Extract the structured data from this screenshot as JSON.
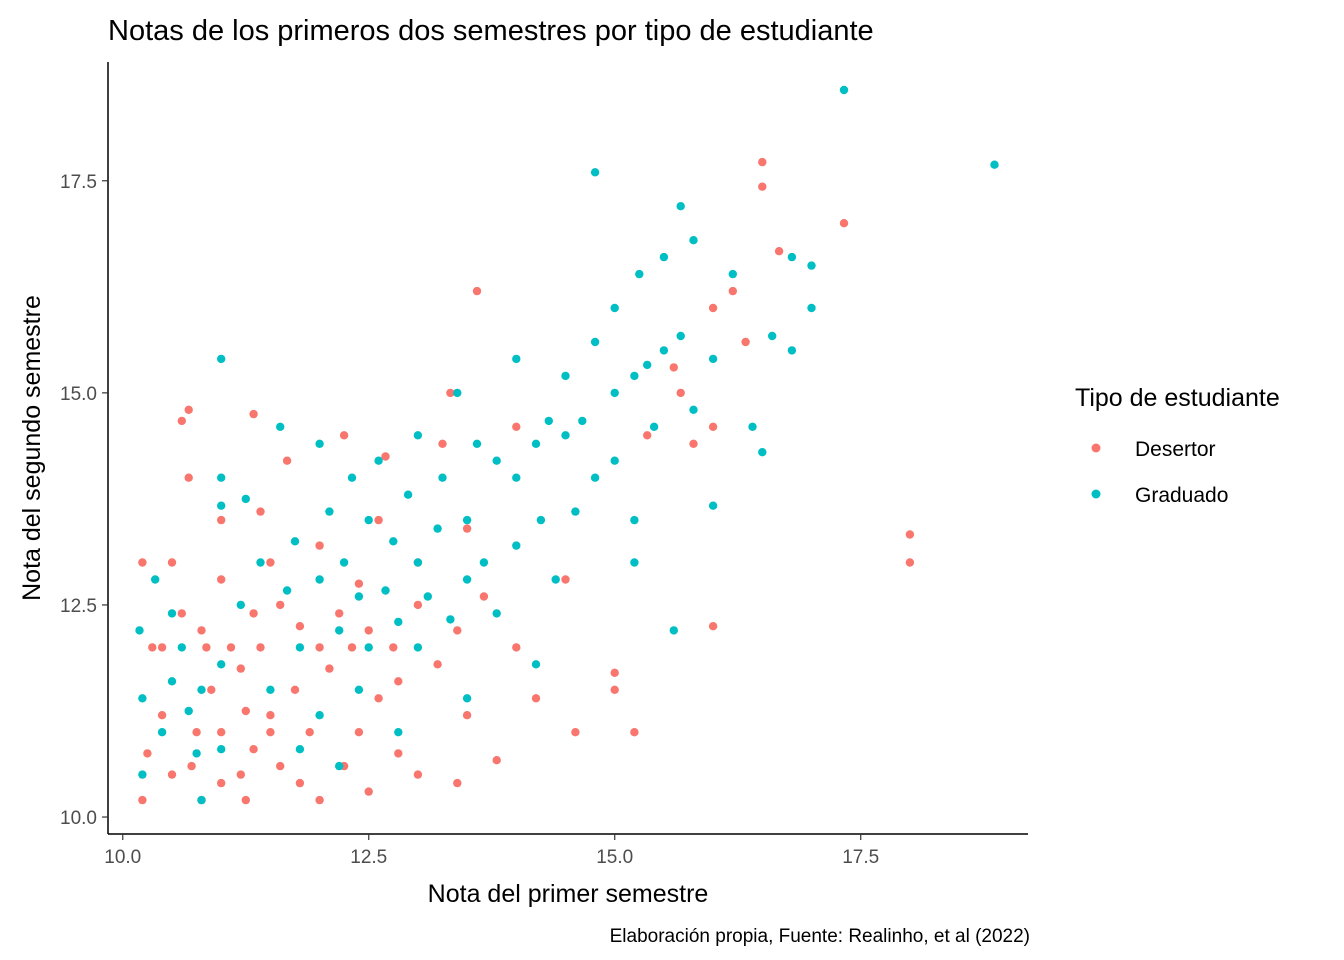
{
  "chart_data": {
    "type": "scatter",
    "title": "Notas de los primeros dos semestres por tipo de estudiante",
    "xlabel": "Nota del primer semestre",
    "ylabel": "Nota del segundo semestre",
    "caption": "Elaboración propia, Fuente: Realinho, et al (2022)",
    "legend_title": "Tipo de estudiante",
    "legend_position": "right",
    "grid": false,
    "xlim": [
      9.85,
      19.2
    ],
    "ylim": [
      9.8,
      18.9
    ],
    "x_ticks": [
      10.0,
      12.5,
      15.0,
      17.5
    ],
    "x_tick_labels": [
      "10.0",
      "12.5",
      "15.0",
      "17.5"
    ],
    "y_ticks": [
      10.0,
      12.5,
      15.0,
      17.5
    ],
    "y_tick_labels": [
      "10.0",
      "12.5",
      "15.0",
      "17.5"
    ],
    "series": [
      {
        "name": "Desertor",
        "color": "#f8766d",
        "points": [
          [
            10.2,
            10.2
          ],
          [
            10.25,
            10.75
          ],
          [
            10.3,
            12.0
          ],
          [
            10.2,
            13.0
          ],
          [
            10.4,
            12.0
          ],
          [
            10.4,
            11.2
          ],
          [
            10.5,
            10.5
          ],
          [
            10.5,
            13.0
          ],
          [
            10.6,
            14.67
          ],
          [
            10.67,
            14.8
          ],
          [
            10.67,
            14.0
          ],
          [
            10.6,
            12.4
          ],
          [
            10.7,
            10.6
          ],
          [
            10.75,
            11.0
          ],
          [
            10.8,
            12.2
          ],
          [
            10.8,
            10.2
          ],
          [
            10.85,
            12.0
          ],
          [
            10.9,
            11.5
          ],
          [
            11.0,
            12.8
          ],
          [
            11.0,
            11.0
          ],
          [
            11.0,
            10.4
          ],
          [
            11.0,
            13.5
          ],
          [
            11.1,
            12.0
          ],
          [
            11.2,
            10.5
          ],
          [
            11.2,
            11.75
          ],
          [
            11.25,
            10.2
          ],
          [
            11.25,
            11.25
          ],
          [
            11.33,
            12.4
          ],
          [
            11.33,
            10.8
          ],
          [
            11.33,
            14.75
          ],
          [
            11.4,
            12.0
          ],
          [
            11.4,
            13.6
          ],
          [
            11.5,
            11.2
          ],
          [
            11.5,
            11.0
          ],
          [
            11.5,
            13.0
          ],
          [
            11.6,
            12.5
          ],
          [
            11.6,
            10.6
          ],
          [
            11.67,
            14.2
          ],
          [
            11.75,
            11.5
          ],
          [
            11.8,
            12.25
          ],
          [
            11.8,
            10.4
          ],
          [
            11.9,
            11.0
          ],
          [
            12.0,
            12.0
          ],
          [
            12.0,
            10.2
          ],
          [
            12.0,
            13.2
          ],
          [
            12.1,
            11.75
          ],
          [
            12.2,
            12.4
          ],
          [
            12.25,
            14.5
          ],
          [
            12.25,
            10.6
          ],
          [
            12.33,
            12.0
          ],
          [
            12.4,
            11.0
          ],
          [
            12.4,
            12.75
          ],
          [
            12.5,
            12.2
          ],
          [
            12.5,
            10.3
          ],
          [
            12.6,
            13.5
          ],
          [
            12.6,
            11.4
          ],
          [
            12.67,
            14.25
          ],
          [
            12.75,
            12.0
          ],
          [
            12.8,
            11.6
          ],
          [
            12.8,
            10.75
          ],
          [
            13.0,
            12.5
          ],
          [
            13.0,
            10.5
          ],
          [
            13.0,
            13.0
          ],
          [
            13.2,
            11.8
          ],
          [
            13.25,
            14.4
          ],
          [
            13.33,
            15.0
          ],
          [
            13.4,
            12.2
          ],
          [
            13.4,
            10.4
          ],
          [
            13.5,
            13.4
          ],
          [
            13.5,
            11.2
          ],
          [
            13.6,
            16.2
          ],
          [
            13.67,
            12.6
          ],
          [
            13.8,
            10.67
          ],
          [
            14.0,
            12.0
          ],
          [
            14.0,
            14.6
          ],
          [
            14.2,
            11.4
          ],
          [
            14.5,
            12.8
          ],
          [
            14.6,
            11.0
          ],
          [
            15.0,
            11.7
          ],
          [
            15.0,
            11.5
          ],
          [
            15.2,
            11.0
          ],
          [
            15.33,
            14.5
          ],
          [
            15.6,
            15.3
          ],
          [
            15.67,
            15.0
          ],
          [
            15.8,
            14.4
          ],
          [
            16.0,
            16.0
          ],
          [
            16.0,
            12.25
          ],
          [
            16.0,
            14.6
          ],
          [
            16.2,
            16.2
          ],
          [
            16.33,
            15.6
          ],
          [
            16.5,
            17.72
          ],
          [
            16.5,
            17.43
          ],
          [
            16.67,
            16.67
          ],
          [
            17.33,
            17.0
          ],
          [
            18.0,
            13.33
          ],
          [
            18.0,
            13.0
          ]
        ]
      },
      {
        "name": "Graduado",
        "color": "#00bfc4",
        "points": [
          [
            10.17,
            12.2
          ],
          [
            10.2,
            11.4
          ],
          [
            10.2,
            10.5
          ],
          [
            10.33,
            12.8
          ],
          [
            10.4,
            11.0
          ],
          [
            10.5,
            12.4
          ],
          [
            10.5,
            11.6
          ],
          [
            10.6,
            12.0
          ],
          [
            10.67,
            11.25
          ],
          [
            10.75,
            10.75
          ],
          [
            10.8,
            11.5
          ],
          [
            10.8,
            10.2
          ],
          [
            11.0,
            14.0
          ],
          [
            11.0,
            13.67
          ],
          [
            11.0,
            11.8
          ],
          [
            11.0,
            10.8
          ],
          [
            11.0,
            15.4
          ],
          [
            11.2,
            12.5
          ],
          [
            11.25,
            13.75
          ],
          [
            11.4,
            13.0
          ],
          [
            11.5,
            11.5
          ],
          [
            11.6,
            14.6
          ],
          [
            11.67,
            12.67
          ],
          [
            11.75,
            13.25
          ],
          [
            11.8,
            12.0
          ],
          [
            11.8,
            10.8
          ],
          [
            12.0,
            14.4
          ],
          [
            12.0,
            12.8
          ],
          [
            12.0,
            11.2
          ],
          [
            12.1,
            13.6
          ],
          [
            12.2,
            12.2
          ],
          [
            12.25,
            13.0
          ],
          [
            12.33,
            14.0
          ],
          [
            12.4,
            12.6
          ],
          [
            12.4,
            11.5
          ],
          [
            12.5,
            13.5
          ],
          [
            12.5,
            12.0
          ],
          [
            12.6,
            14.2
          ],
          [
            12.67,
            12.67
          ],
          [
            12.75,
            13.25
          ],
          [
            12.8,
            12.3
          ],
          [
            12.8,
            11.0
          ],
          [
            12.9,
            13.8
          ],
          [
            13.0,
            13.0
          ],
          [
            13.0,
            12.0
          ],
          [
            13.0,
            14.5
          ],
          [
            13.1,
            12.6
          ],
          [
            13.2,
            13.4
          ],
          [
            13.25,
            14.0
          ],
          [
            13.33,
            12.33
          ],
          [
            13.4,
            15.0
          ],
          [
            13.5,
            13.5
          ],
          [
            13.5,
            12.8
          ],
          [
            13.6,
            14.4
          ],
          [
            13.67,
            13.0
          ],
          [
            13.8,
            14.2
          ],
          [
            13.8,
            12.4
          ],
          [
            14.0,
            14.0
          ],
          [
            14.0,
            13.2
          ],
          [
            14.0,
            15.4
          ],
          [
            14.2,
            14.4
          ],
          [
            14.25,
            13.5
          ],
          [
            14.33,
            14.67
          ],
          [
            14.4,
            12.8
          ],
          [
            14.5,
            14.5
          ],
          [
            14.5,
            15.2
          ],
          [
            14.6,
            13.6
          ],
          [
            14.67,
            14.67
          ],
          [
            14.8,
            15.6
          ],
          [
            14.8,
            14.0
          ],
          [
            14.8,
            17.6
          ],
          [
            15.0,
            15.0
          ],
          [
            15.0,
            16.0
          ],
          [
            15.0,
            14.2
          ],
          [
            15.2,
            15.2
          ],
          [
            15.2,
            13.0
          ],
          [
            15.25,
            16.4
          ],
          [
            15.33,
            15.33
          ],
          [
            15.4,
            14.6
          ],
          [
            15.5,
            15.5
          ],
          [
            15.5,
            16.6
          ],
          [
            15.6,
            12.2
          ],
          [
            15.67,
            15.67
          ],
          [
            15.67,
            17.2
          ],
          [
            15.8,
            14.8
          ],
          [
            15.8,
            16.8
          ],
          [
            16.0,
            15.4
          ],
          [
            16.0,
            13.67
          ],
          [
            16.2,
            16.4
          ],
          [
            16.4,
            14.6
          ],
          [
            16.5,
            14.3
          ],
          [
            16.6,
            15.67
          ],
          [
            16.8,
            16.6
          ],
          [
            16.8,
            15.5
          ],
          [
            17.0,
            16.5
          ],
          [
            17.0,
            16.0
          ],
          [
            17.33,
            18.57
          ],
          [
            18.86,
            17.69
          ],
          [
            15.2,
            13.5
          ],
          [
            14.2,
            11.8
          ],
          [
            13.5,
            11.4
          ],
          [
            12.2,
            10.6
          ]
        ]
      }
    ]
  }
}
